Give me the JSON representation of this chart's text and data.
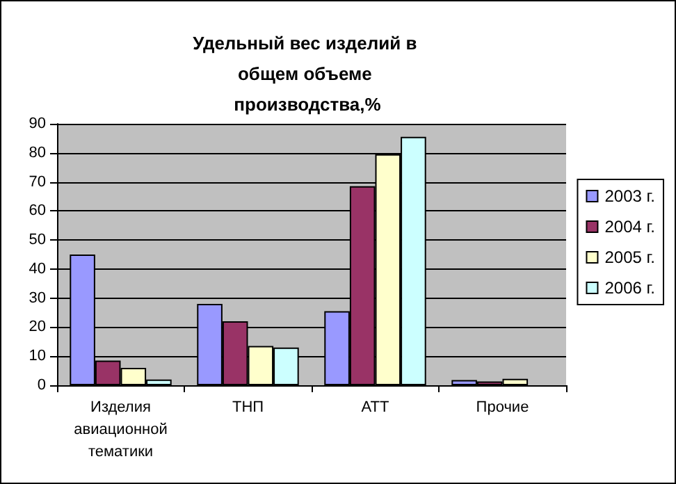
{
  "chart_data": {
    "type": "bar",
    "title": "Удельный вес изделий в общем объеме производства,%",
    "categories": [
      "Изделия авиационной тематики",
      "ТНП",
      "АТТ",
      "Прочие"
    ],
    "series": [
      {
        "name": "2003 г.",
        "color": "#9999ff",
        "values": [
          45,
          28,
          25.5,
          1.8
        ]
      },
      {
        "name": "2004 г.",
        "color": "#993366",
        "values": [
          8.5,
          22,
          68.5,
          1.3
        ]
      },
      {
        "name": "2005 г.",
        "color": "#ffffcc",
        "values": [
          6,
          13.5,
          79.5,
          2.2
        ]
      },
      {
        "name": "2006 г.",
        "color": "#ccffff",
        "values": [
          2,
          13,
          85.5,
          null
        ]
      }
    ],
    "ylim": [
      0,
      90
    ],
    "yticks": [
      0,
      10,
      20,
      30,
      40,
      50,
      60,
      70,
      80,
      90
    ],
    "grid": "y",
    "legend": "right"
  }
}
